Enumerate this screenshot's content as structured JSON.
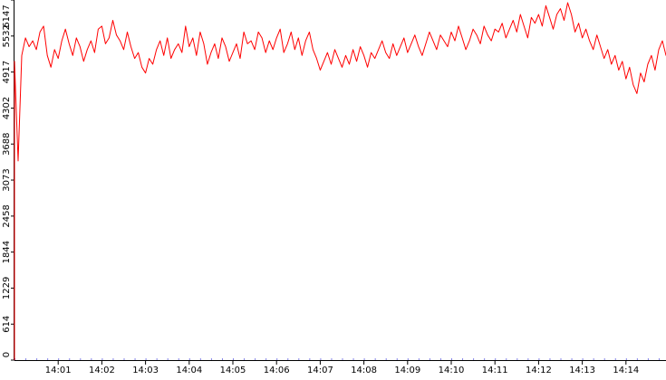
{
  "colors": {
    "line": "#ff0000",
    "axis": "#000000",
    "baseline": "#0000cc",
    "background": "#ffffff"
  },
  "chart_data": {
    "type": "line",
    "title": "",
    "xlabel": "",
    "ylabel": "",
    "grid": false,
    "ylim": [
      0,
      6147
    ],
    "y_ticks": [
      "0",
      "614",
      "1229",
      "1844",
      "2458",
      "3073",
      "3688",
      "4302",
      "4917",
      "5532",
      "6147"
    ],
    "x_ticks": [
      "14:01",
      "14:02",
      "14:03",
      "14:04",
      "14:05",
      "14:06",
      "14:07",
      "14:08",
      "14:09",
      "14:10",
      "14:11",
      "14:12",
      "14:13",
      "14:14"
    ],
    "x_range": [
      "14:00:00",
      "14:14:55"
    ],
    "series": [
      {
        "color": "#ff0000",
        "sample_interval_s": 5,
        "values": [
          5100,
          3400,
          5200,
          5500,
          5350,
          5450,
          5300,
          5600,
          5700,
          5200,
          5000,
          5300,
          5150,
          5450,
          5650,
          5400,
          5200,
          5500,
          5350,
          5100,
          5300,
          5450,
          5250,
          5650,
          5700,
          5400,
          5500,
          5800,
          5550,
          5450,
          5300,
          5600,
          5350,
          5150,
          5250,
          5000,
          4900,
          5150,
          5050,
          5300,
          5450,
          5200,
          5500,
          5150,
          5300,
          5400,
          5250,
          5700,
          5350,
          5500,
          5200,
          5600,
          5400,
          5050,
          5250,
          5400,
          5150,
          5500,
          5350,
          5100,
          5250,
          5400,
          5150,
          5600,
          5400,
          5450,
          5300,
          5600,
          5500,
          5250,
          5450,
          5300,
          5500,
          5650,
          5250,
          5400,
          5600,
          5300,
          5500,
          5200,
          5450,
          5600,
          5300,
          5150,
          4950,
          5100,
          5250,
          5050,
          5300,
          5150,
          5000,
          5200,
          5050,
          5300,
          5100,
          5350,
          5200,
          5000,
          5250,
          5150,
          5300,
          5450,
          5250,
          5150,
          5400,
          5200,
          5350,
          5500,
          5250,
          5400,
          5550,
          5350,
          5200,
          5400,
          5600,
          5450,
          5300,
          5550,
          5450,
          5350,
          5600,
          5450,
          5700,
          5500,
          5300,
          5450,
          5650,
          5550,
          5400,
          5700,
          5550,
          5450,
          5650,
          5600,
          5750,
          5500,
          5650,
          5800,
          5600,
          5900,
          5700,
          5500,
          5850,
          5750,
          5900,
          5700,
          6050,
          5850,
          5650,
          5900,
          6000,
          5800,
          6100,
          5900,
          5600,
          5750,
          5500,
          5650,
          5450,
          5300,
          5550,
          5350,
          5150,
          5300,
          5050,
          5200,
          4950,
          5100,
          4800,
          5000,
          4700,
          4550,
          4900,
          4750,
          5050,
          5200,
          4950,
          5300,
          5450,
          5200,
          5500,
          5650,
          5450,
          5800,
          5550,
          5700,
          5450,
          5600,
          5400,
          5700,
          5550,
          5350,
          5500,
          5650,
          5450,
          5300,
          5500,
          5400,
          5250,
          5450,
          5550,
          5350,
          5200,
          5400,
          5300,
          5150,
          5000,
          5200,
          5050,
          5300,
          5200,
          5350,
          5500,
          5300,
          5450,
          5650,
          5500,
          5750,
          5600,
          5850,
          5700,
          5950,
          5750,
          5850,
          6000,
          5800,
          5650,
          5900,
          5750,
          5950,
          5800,
          6050,
          5850,
          5700,
          5900,
          5800,
          6000,
          5800,
          5650,
          5950,
          5750,
          5900,
          5650,
          5850,
          5700,
          5550,
          5750,
          5600,
          5450,
          5650,
          5500,
          5400,
          5600,
          5450,
          5700,
          5550,
          5350,
          5500,
          5650,
          5450,
          5800,
          5600,
          5750,
          5500,
          5650,
          5400,
          5600,
          5350,
          5200
        ]
      }
    ]
  }
}
